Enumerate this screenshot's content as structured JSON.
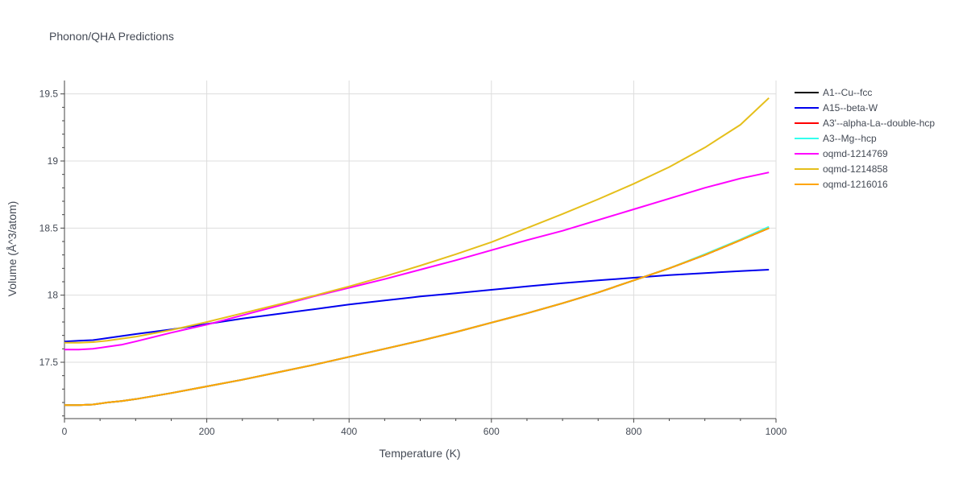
{
  "chart_data": {
    "type": "line",
    "title": "Phonon/QHA Predictions",
    "xlabel": "Temperature (K)",
    "ylabel": "Volume (Å^3/atom)",
    "xlim": [
      0,
      1000
    ],
    "ylim": [
      17.08,
      19.6
    ],
    "x_ticks": [
      0,
      200,
      400,
      600,
      800,
      1000
    ],
    "y_ticks": [
      17.5,
      18,
      18.5,
      19,
      19.5
    ],
    "grid": true,
    "legend_position": "right",
    "x": [
      0,
      20,
      40,
      60,
      80,
      100,
      150,
      200,
      250,
      300,
      350,
      400,
      450,
      500,
      550,
      600,
      650,
      700,
      750,
      800,
      850,
      900,
      950,
      990
    ],
    "series": [
      {
        "name": "A1--Cu--fcc",
        "color": "#000000",
        "values": [
          17.18,
          17.18,
          17.185,
          17.2,
          17.21,
          17.225,
          17.27,
          17.32,
          17.37,
          17.425,
          17.48,
          17.54,
          17.6,
          17.66,
          17.725,
          17.795,
          17.865,
          17.94,
          18.02,
          18.11,
          18.2,
          18.3,
          18.41,
          18.5
        ]
      },
      {
        "name": "A15--beta-W",
        "color": "#0000ee",
        "values": [
          17.655,
          17.66,
          17.665,
          17.68,
          17.695,
          17.71,
          17.745,
          17.785,
          17.825,
          17.86,
          17.895,
          17.93,
          17.96,
          17.99,
          18.015,
          18.04,
          18.065,
          18.09,
          18.11,
          18.13,
          18.15,
          18.165,
          18.18,
          18.19
        ]
      },
      {
        "name": "A3'--alpha-La--double-hcp",
        "color": "#ff0000",
        "values": [
          17.18,
          17.18,
          17.185,
          17.2,
          17.21,
          17.225,
          17.27,
          17.32,
          17.37,
          17.425,
          17.48,
          17.54,
          17.6,
          17.66,
          17.725,
          17.795,
          17.865,
          17.94,
          18.02,
          18.11,
          18.2,
          18.3,
          18.41,
          18.5
        ]
      },
      {
        "name": "A3--Mg--hcp",
        "color": "#33ffee",
        "values": [
          17.18,
          17.18,
          17.185,
          17.2,
          17.21,
          17.225,
          17.27,
          17.32,
          17.37,
          17.425,
          17.48,
          17.54,
          17.6,
          17.66,
          17.725,
          17.795,
          17.865,
          17.94,
          18.02,
          18.11,
          18.2,
          18.305,
          18.415,
          18.51
        ]
      },
      {
        "name": "oqmd-1214769",
        "color": "#ff00ff",
        "values": [
          17.595,
          17.595,
          17.6,
          17.615,
          17.63,
          17.655,
          17.72,
          17.78,
          17.85,
          17.92,
          17.99,
          18.055,
          18.12,
          18.19,
          18.26,
          18.335,
          18.41,
          18.48,
          18.56,
          18.64,
          18.72,
          18.8,
          18.87,
          18.915
        ]
      },
      {
        "name": "oqmd-1214858",
        "color": "#e5bf1b",
        "values": [
          17.645,
          17.645,
          17.65,
          17.66,
          17.675,
          17.69,
          17.74,
          17.8,
          17.865,
          17.93,
          17.995,
          18.065,
          18.14,
          18.22,
          18.305,
          18.395,
          18.5,
          18.605,
          18.715,
          18.83,
          18.955,
          19.1,
          19.27,
          19.47
        ]
      },
      {
        "name": "oqmd-1216016",
        "color": "#ffa500",
        "values": [
          17.18,
          17.18,
          17.185,
          17.2,
          17.21,
          17.225,
          17.27,
          17.32,
          17.37,
          17.425,
          17.48,
          17.54,
          17.6,
          17.66,
          17.725,
          17.795,
          17.865,
          17.94,
          18.02,
          18.11,
          18.2,
          18.3,
          18.41,
          18.5
        ]
      }
    ]
  }
}
